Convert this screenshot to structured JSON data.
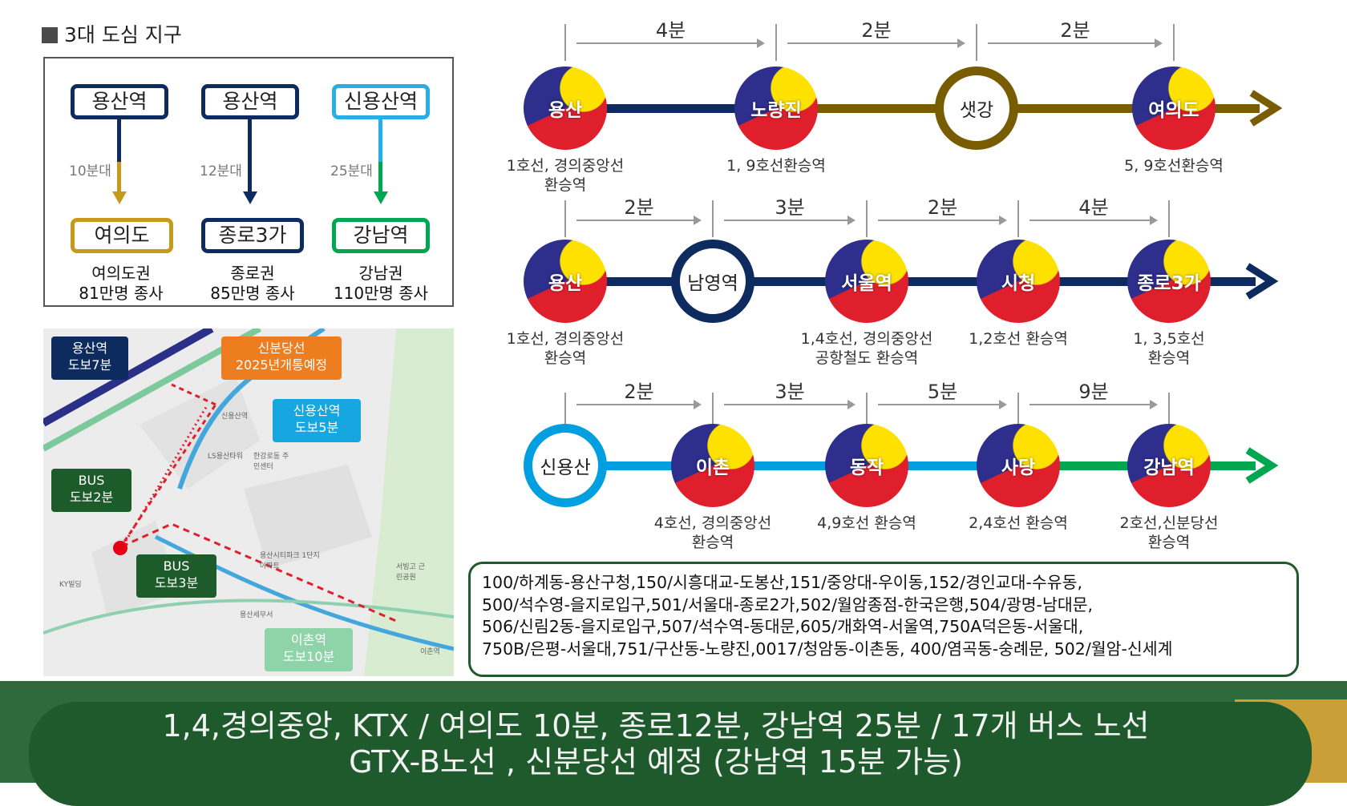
{
  "heading": "3대 도심 지구",
  "districts": [
    {
      "from": "용산역",
      "duration": "10분대",
      "to": "여의도",
      "worker_line1": "여의도권",
      "worker_line2": "81만명 종사"
    },
    {
      "from": "용산역",
      "duration": "12분대",
      "to": "종로3가",
      "worker_line1": "종로권",
      "worker_line2": "85만명 종사"
    },
    {
      "from": "신용산역",
      "duration": "25분대",
      "to": "강남역",
      "worker_line1": "강남권",
      "worker_line2": "110만명 종사"
    }
  ],
  "map": {
    "callouts": {
      "yongsan": [
        "용산역",
        "도보7분"
      ],
      "sinbundang": [
        "신분당선",
        "2025년개통예정"
      ],
      "sinyongsan": [
        "신용산역",
        "도보5분"
      ],
      "bus1": [
        "BUS",
        "도보2분"
      ],
      "bus2": [
        "BUS",
        "도보3분"
      ],
      "ichon": [
        "이촌역",
        "도보10분"
      ]
    },
    "labels": {
      "sinyongsan_st": "신용산역",
      "lstower": "LS용산타워",
      "ipark": "용산시티파크 1단지아파트",
      "ichon_st": "이촌역",
      "hanggang": "한강로동 주민센터",
      "seobinggo": "서빙고 근린공원",
      "kybuilding": "KY빌딩",
      "yongsan_tax": "용산세무서"
    }
  },
  "routes": [
    {
      "color": "#7a5c00",
      "segments": [
        "#0d2b5e",
        "#7a5c00",
        "#7a5c00",
        "#7a5c00"
      ],
      "minutes": [
        "4분",
        "2분",
        "2분"
      ],
      "stations": [
        {
          "name": "용산",
          "style": "taegeuk",
          "transfer": [
            "1호선, 경의중앙선",
            "환승역"
          ]
        },
        {
          "name": "노량진",
          "style": "taegeuk",
          "transfer": [
            "1, 9호선환승역"
          ]
        },
        {
          "name": "샛강",
          "style": "ring",
          "transfer": []
        },
        {
          "name": "여의도",
          "style": "taegeuk",
          "transfer": [
            "5, 9호선환승역"
          ]
        }
      ]
    },
    {
      "color": "#0d2b5e",
      "segments": [
        "#0d2b5e",
        "#0d2b5e",
        "#0d2b5e",
        "#0d2b5e",
        "#0d2b5e"
      ],
      "minutes": [
        "2분",
        "3분",
        "2분",
        "4분"
      ],
      "stations": [
        {
          "name": "용산",
          "style": "taegeuk",
          "transfer": [
            "1호선, 경의중앙선",
            "환승역"
          ]
        },
        {
          "name": "남영역",
          "style": "ring",
          "transfer": []
        },
        {
          "name": "서울역",
          "style": "taegeuk",
          "transfer": [
            "1,4호선, 경의중앙선",
            "공항철도 환승역"
          ]
        },
        {
          "name": "시청",
          "style": "taegeuk",
          "transfer": [
            "1,2호선 환승역"
          ]
        },
        {
          "name": "종로3가",
          "style": "taegeuk",
          "transfer": [
            "1, 3,5호선",
            "환승역"
          ]
        }
      ]
    },
    {
      "color": "#00a650",
      "segments": [
        "#00a0e0",
        "#00a0e0",
        "#00a0e0",
        "#00a650",
        "#00a650"
      ],
      "minutes": [
        "2분",
        "3분",
        "5분",
        "9분"
      ],
      "stations": [
        {
          "name": "신용산",
          "style": "ring",
          "transfer": []
        },
        {
          "name": "이촌",
          "style": "taegeuk",
          "transfer": [
            "4호선, 경의중앙선",
            "환승역"
          ]
        },
        {
          "name": "동작",
          "style": "taegeuk",
          "transfer": [
            "4,9호선 환승역"
          ]
        },
        {
          "name": "사당",
          "style": "taegeuk",
          "transfer": [
            "2,4호선 환승역"
          ]
        },
        {
          "name": "강남역",
          "style": "taegeuk",
          "transfer": [
            "2호선,신분당선",
            "환승역"
          ]
        }
      ]
    }
  ],
  "bus_routes": [
    "100/하계동-용산구청,150/시흥대교-도봉산,151/중앙대-우이동,152/경인교대-수유동,",
    "500/석수영-을지로입구,501/서울대-종로2가,502/월암종점-한국은행,504/광명-남대문,",
    "506/신림2동-을지로입구,507/석수역-동대문,605/개화역-서울역,750A덕은동-서울대,",
    "750B/은평-서울대,751/구산동-노량진,0017/청암동-이촌동, 400/염곡동-숭례문, 502/월암-신세계"
  ],
  "footer": {
    "line1": "1,4,경의중앙, KTX / 여의도 10분, 종로12분, 강남역 25분 / 17개 버스 노선",
    "line2": "GTX-B노선 , 신분당선 예정 (강남역 15분 가능)"
  }
}
